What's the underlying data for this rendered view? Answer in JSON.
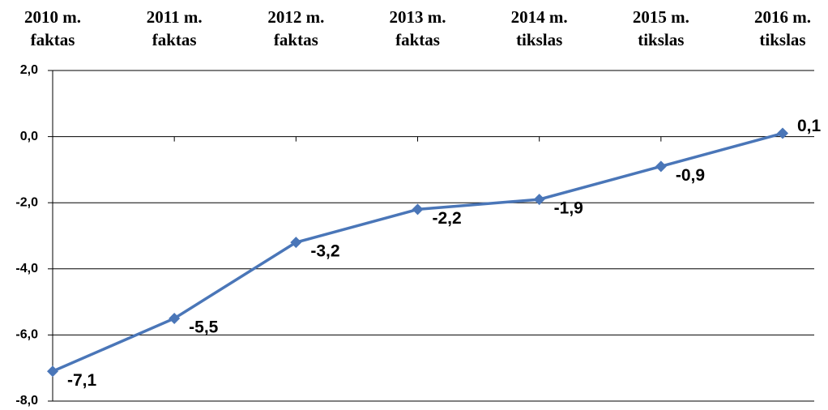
{
  "chart_data": {
    "type": "line",
    "categories": [
      [
        "2010 m.",
        "faktas"
      ],
      [
        "2011 m.",
        "faktas"
      ],
      [
        "2012 m.",
        "faktas"
      ],
      [
        "2013 m.",
        "faktas"
      ],
      [
        "2014 m.",
        "tikslas"
      ],
      [
        "2015 m.",
        "tikslas"
      ],
      [
        "2016 m.",
        "tikslas"
      ]
    ],
    "series": [
      {
        "color": "#4a76b8",
        "values": [
          -7.1,
          -5.5,
          -3.2,
          -2.2,
          -1.9,
          -0.9,
          0.1
        ],
        "value_labels": [
          "-7,1",
          "-5,5",
          "-3,2",
          "-2,2",
          "-1,9",
          "-0,9",
          "0,1"
        ]
      }
    ],
    "ylim": [
      -8,
      2
    ],
    "yticks": [
      {
        "value": -8,
        "label": "-8,0"
      },
      {
        "value": -6,
        "label": "-6,0"
      },
      {
        "value": -4,
        "label": "-4,0"
      },
      {
        "value": -2,
        "label": "-2,0"
      },
      {
        "value": 0,
        "label": "0,0"
      },
      {
        "value": 2,
        "label": "2,0"
      }
    ],
    "grid": true
  }
}
